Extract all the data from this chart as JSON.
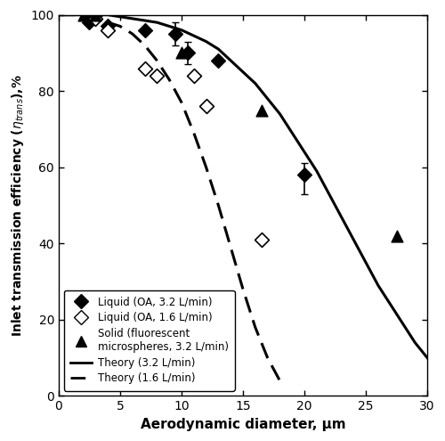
{
  "xlabel": "Aerodynamic diameter, μm",
  "xlim": [
    0,
    30
  ],
  "ylim": [
    0,
    100
  ],
  "xticks": [
    0,
    5,
    10,
    15,
    20,
    25,
    30
  ],
  "yticks": [
    0,
    20,
    40,
    60,
    80,
    100
  ],
  "liquid_32_x": [
    2.5,
    3.0,
    4.0,
    7.0,
    9.5,
    10.5,
    13.0,
    20.0
  ],
  "liquid_32_y": [
    98,
    100,
    97,
    96,
    95,
    90,
    88,
    58
  ],
  "liquid_32_yerr_lo": [
    0,
    0,
    0,
    0,
    3,
    3,
    0,
    5
  ],
  "liquid_32_yerr_hi": [
    0,
    0,
    0,
    0,
    3,
    3,
    0,
    3
  ],
  "liquid_16_x": [
    3.0,
    4.0,
    7.0,
    8.0,
    11.0,
    12.0,
    16.5
  ],
  "liquid_16_y": [
    99,
    96,
    86,
    84,
    84,
    76,
    41
  ],
  "solid_32_x": [
    2.0,
    3.0,
    10.0,
    16.5,
    27.5
  ],
  "solid_32_y": [
    100,
    100,
    90,
    75,
    42
  ],
  "theory_32_x": [
    0,
    1,
    2,
    3,
    4,
    5,
    6,
    7,
    8,
    9,
    10,
    11,
    12,
    13,
    14,
    15,
    16,
    17,
    18,
    19,
    20,
    21,
    22,
    23,
    24,
    25,
    26,
    27,
    28,
    29,
    30
  ],
  "theory_32_y": [
    100,
    100,
    100,
    100,
    100,
    99.5,
    99,
    98.5,
    98,
    97,
    96,
    94.5,
    93,
    91,
    88,
    85,
    82,
    78,
    74,
    69,
    64,
    59,
    53,
    47,
    41,
    35,
    29,
    24,
    19,
    14,
    10
  ],
  "theory_16_x": [
    0,
    1,
    2,
    3,
    4,
    5,
    6,
    7,
    8,
    9,
    10,
    11,
    12,
    13,
    14,
    15,
    16,
    17,
    18
  ],
  "theory_16_y": [
    100,
    100,
    100,
    99,
    98,
    97,
    95,
    92,
    88,
    83,
    77,
    69,
    60,
    50,
    39,
    28,
    18,
    10,
    4
  ],
  "legend_labels": [
    "Liquid (OA, 3.2 L/min)",
    "Liquid (OA, 1.6 L/min)",
    "Solid (fluorescent\nmicrospheres, 3.2 L/min)",
    "Theory (3.2 L/min)",
    "Theory (1.6 L/min)"
  ]
}
